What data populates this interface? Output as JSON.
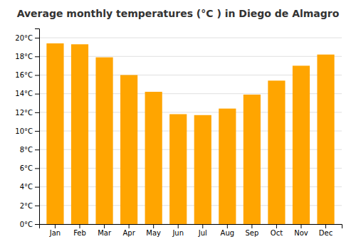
{
  "chart_data": {
    "type": "bar",
    "title": "Average monthly temperatures (°C ) in Diego de Almagro",
    "categories": [
      "Jan",
      "Feb",
      "Mar",
      "Apr",
      "May",
      "Jun",
      "Jul",
      "Aug",
      "Sep",
      "Oct",
      "Nov",
      "Dec"
    ],
    "values": [
      19.4,
      19.3,
      17.9,
      16.0,
      14.2,
      11.8,
      11.7,
      12.4,
      13.9,
      15.4,
      17.0,
      18.2
    ],
    "color": "#FFA500",
    "ylim": [
      0,
      21
    ],
    "yticks": [
      {
        "value": 0,
        "label": "0°C"
      },
      {
        "value": 2,
        "label": "2°C"
      },
      {
        "value": 4,
        "label": "4°C"
      },
      {
        "value": 6,
        "label": "6°C"
      },
      {
        "value": 8,
        "label": "8°C"
      },
      {
        "value": 10,
        "label": "10°C"
      },
      {
        "value": 12,
        "label": "12°C"
      },
      {
        "value": 14,
        "label": "14°C"
      },
      {
        "value": 16,
        "label": "16°C"
      },
      {
        "value": 18,
        "label": "18°C"
      },
      {
        "value": 20,
        "label": "20°C"
      }
    ],
    "grid": true
  }
}
